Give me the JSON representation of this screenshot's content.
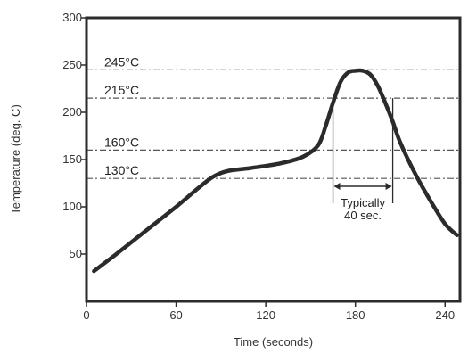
{
  "chart_data": {
    "type": "line",
    "title": "",
    "xlabel": "Time (seconds)",
    "ylabel": "Temperature (deg. C)",
    "xlim": [
      0,
      250
    ],
    "ylim": [
      0,
      300
    ],
    "x_ticks": [
      0,
      60,
      120,
      180,
      240
    ],
    "x_tick_labels": [
      "0",
      "60",
      "120",
      "180",
      "240"
    ],
    "y_ticks": [
      50,
      100,
      150,
      200,
      250,
      300
    ],
    "y_tick_labels": [
      "50",
      "100",
      "150",
      "200",
      "250",
      "300"
    ],
    "grid": false,
    "reference_lines": [
      {
        "y": 245,
        "label": "245°C"
      },
      {
        "y": 215,
        "label": "215°C"
      },
      {
        "y": 160,
        "label": "160°C"
      },
      {
        "y": 130,
        "label": "130°C"
      }
    ],
    "series": [
      {
        "x": [
          5,
          20,
          40,
          60,
          75,
          85,
          95,
          110,
          130,
          145,
          155,
          160,
          165,
          170,
          175,
          180,
          185,
          190,
          195,
          200,
          205,
          210,
          220,
          230,
          240,
          248
        ],
        "y": [
          32,
          50,
          75,
          100,
          120,
          132,
          138,
          141,
          146,
          153,
          165,
          185,
          210,
          232,
          242,
          244,
          244,
          240,
          228,
          210,
          190,
          168,
          135,
          107,
          82,
          70
        ]
      }
    ],
    "annotations": [
      {
        "text_line1": "Typically",
        "text_line2": "40 sec.",
        "x_start": 165,
        "x_end": 205,
        "y": 117
      }
    ]
  },
  "colors": {
    "curve": "#2b2b2b",
    "axis": "#2b2b2b",
    "ref_line": "#555555",
    "text": "#333333"
  }
}
